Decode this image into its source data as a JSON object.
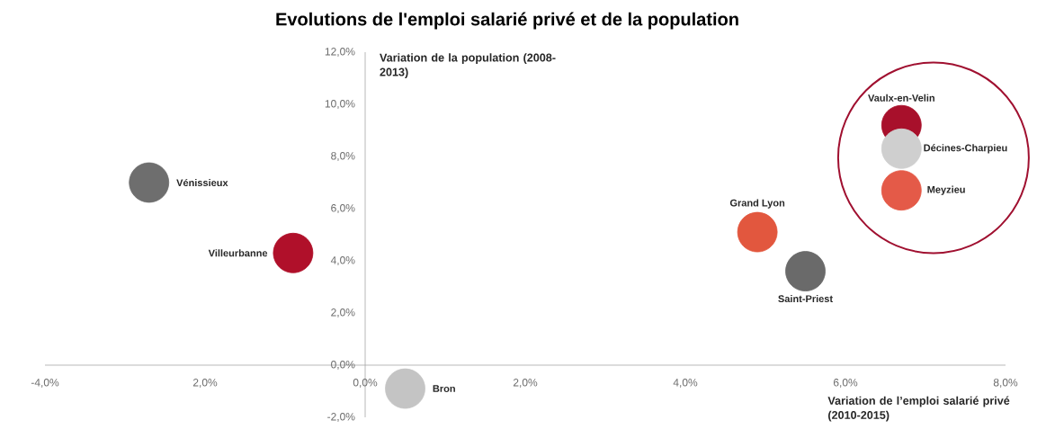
{
  "chart_data": {
    "type": "scatter",
    "title": "Evolutions de l'emploi salarié privé et de la population",
    "xlabel": "Variation de l’emploi salarié privé (2010-2015)",
    "ylabel": "Variation de la population (2008-2013)",
    "xlim": [
      -4,
      8
    ],
    "ylim": [
      -2,
      12
    ],
    "xticks": [
      {
        "value": -4,
        "label": "-4,0%"
      },
      {
        "value": -2,
        "label": "2,0%"
      },
      {
        "value": 0,
        "label": "0,0%"
      },
      {
        "value": 2,
        "label": "2,0%"
      },
      {
        "value": 4,
        "label": "4,0%"
      },
      {
        "value": 6,
        "label": "6,0%"
      },
      {
        "value": 8,
        "label": "8,0%"
      }
    ],
    "yticks": [
      {
        "value": -2,
        "label": "-2,0%"
      },
      {
        "value": 0,
        "label": "0,0%"
      },
      {
        "value": 2,
        "label": "2,0%"
      },
      {
        "value": 4,
        "label": "4,0%"
      },
      {
        "value": 6,
        "label": "6,0%"
      },
      {
        "value": 8,
        "label": "8,0%"
      },
      {
        "value": 10,
        "label": "10,0%"
      },
      {
        "value": 12,
        "label": "12,0%"
      }
    ],
    "grid": false,
    "legend": "center",
    "series": [
      {
        "name": "Vénissieux",
        "color": "#6e6e6e",
        "x": [
          -2.7
        ],
        "values": [
          7.0
        ]
      },
      {
        "name": "Villeurbanne",
        "color": "#b0102a",
        "x": [
          -0.9
        ],
        "values": [
          4.3
        ]
      },
      {
        "name": "Bron",
        "color": "#c4c4c4",
        "x": [
          0.5
        ],
        "values": [
          -0.9
        ]
      },
      {
        "name": "Grand Lyon",
        "color": "#e2573e",
        "x": [
          4.9
        ],
        "values": [
          5.1
        ]
      },
      {
        "name": "Saint-Priest",
        "color": "#6a6a6a",
        "x": [
          5.5
        ],
        "values": [
          3.6
        ]
      },
      {
        "name": "Vaulx-en-Velin",
        "color": "#a8102b",
        "x": [
          6.7
        ],
        "values": [
          9.2
        ]
      },
      {
        "name": "Décines-Charpieu",
        "color": "#cfcfcf",
        "x": [
          6.7
        ],
        "values": [
          8.3
        ]
      },
      {
        "name": "Meyzieu",
        "color": "#e45a48",
        "x": [
          6.7
        ],
        "values": [
          6.7
        ]
      }
    ]
  }
}
